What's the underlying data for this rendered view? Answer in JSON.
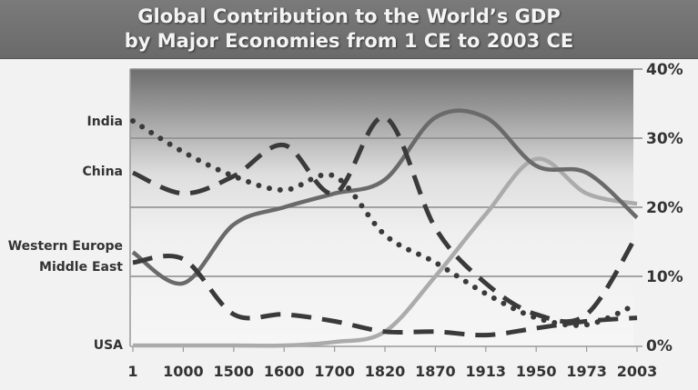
{
  "title": {
    "line1": "Global Contribution to the World’s GDP",
    "line2": "by Major Economies from 1 CE to 2003 CE"
  },
  "chart_data": {
    "type": "line",
    "title": "Global Contribution to the World’s GDP by Major Economies from 1 CE to 2003 CE",
    "xlabel": "",
    "ylabel": "",
    "categories": [
      "1",
      "1000",
      "1500",
      "1600",
      "1700",
      "1820",
      "1870",
      "1913",
      "1950",
      "1973",
      "2003"
    ],
    "yticks": [
      "0%",
      "10%",
      "20%",
      "30%",
      "40%"
    ],
    "ylim": [
      0,
      40
    ],
    "grid": true,
    "legend_position": "left (labels at series start)",
    "series": [
      {
        "name": "India",
        "style": "dotted",
        "values": [
          32.5,
          28,
          24.5,
          22.5,
          24.5,
          16,
          12,
          7.5,
          4,
          3,
          6
        ]
      },
      {
        "name": "China",
        "style": "dashed",
        "values": [
          25,
          22,
          24.5,
          29,
          22,
          33,
          17,
          9,
          4.5,
          4.5,
          16
        ]
      },
      {
        "name": "Western Europe",
        "style": "solid-dark",
        "values": [
          13.5,
          9,
          17.5,
          20,
          22,
          24,
          33,
          33,
          26,
          25,
          18.5
        ]
      },
      {
        "name": "Middle East",
        "style": "dashed",
        "values": [
          12,
          12.5,
          4.5,
          4.5,
          3.5,
          2,
          2,
          1.5,
          2.5,
          3.5,
          4
        ]
      },
      {
        "name": "USA",
        "style": "solid-light",
        "values": [
          0,
          0,
          0,
          0,
          0.5,
          2,
          10,
          19,
          27,
          22,
          20.5
        ]
      }
    ]
  },
  "colors": {
    "title_bg": "#707070",
    "dark_line": "#3a3a3a",
    "we_line": "#6a6a6a",
    "usa_line": "#a8a8a8",
    "grid": "#888888"
  }
}
